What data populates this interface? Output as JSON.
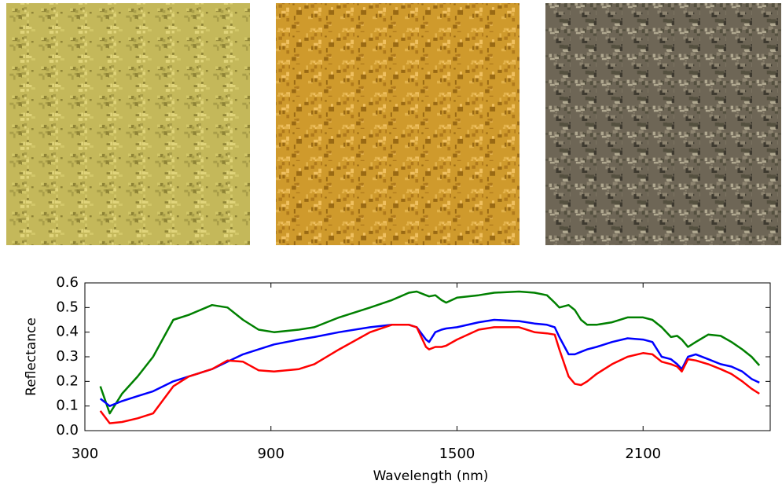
{
  "chart_data": {
    "type": "line",
    "x_label": "Wavelength (nm)",
    "y_label": "Reflectance",
    "x": [
      350,
      380,
      420,
      470,
      520,
      585,
      635,
      710,
      760,
      810,
      860,
      910,
      990,
      1040,
      1120,
      1220,
      1290,
      1345,
      1370,
      1400,
      1410,
      1430,
      1450,
      1465,
      1500,
      1570,
      1620,
      1700,
      1750,
      1790,
      1815,
      1830,
      1860,
      1880,
      1900,
      1920,
      1950,
      2000,
      2050,
      2100,
      2130,
      2160,
      2190,
      2210,
      2225,
      2245,
      2270,
      2310,
      2350,
      2385,
      2420,
      2450,
      2475
    ],
    "series": [
      {
        "color": "#008000",
        "values": [
          0.18,
          0.07,
          0.15,
          0.22,
          0.3,
          0.45,
          0.47,
          0.51,
          0.5,
          0.45,
          0.41,
          0.4,
          0.41,
          0.42,
          0.46,
          0.5,
          0.53,
          0.56,
          0.565,
          0.55,
          0.545,
          0.55,
          0.53,
          0.52,
          0.54,
          0.55,
          0.56,
          0.565,
          0.56,
          0.55,
          0.52,
          0.5,
          0.51,
          0.49,
          0.45,
          0.43,
          0.43,
          0.44,
          0.46,
          0.46,
          0.45,
          0.42,
          0.38,
          0.385,
          0.37,
          0.34,
          0.36,
          0.39,
          0.385,
          0.36,
          0.33,
          0.3,
          0.265
        ]
      },
      {
        "color": "#0000ff",
        "values": [
          0.13,
          0.1,
          0.12,
          0.14,
          0.16,
          0.2,
          0.22,
          0.25,
          0.28,
          0.31,
          0.33,
          0.35,
          0.37,
          0.38,
          0.4,
          0.42,
          0.43,
          0.43,
          0.42,
          0.37,
          0.36,
          0.4,
          0.41,
          0.415,
          0.42,
          0.44,
          0.45,
          0.445,
          0.435,
          0.43,
          0.42,
          0.38,
          0.31,
          0.31,
          0.32,
          0.33,
          0.34,
          0.36,
          0.375,
          0.37,
          0.36,
          0.3,
          0.29,
          0.27,
          0.25,
          0.3,
          0.31,
          0.29,
          0.27,
          0.26,
          0.24,
          0.21,
          0.195
        ]
      },
      {
        "color": "#ff0000",
        "values": [
          0.08,
          0.03,
          0.035,
          0.05,
          0.07,
          0.18,
          0.22,
          0.25,
          0.285,
          0.28,
          0.245,
          0.24,
          0.25,
          0.27,
          0.33,
          0.4,
          0.43,
          0.43,
          0.42,
          0.34,
          0.33,
          0.34,
          0.34,
          0.345,
          0.37,
          0.41,
          0.42,
          0.42,
          0.4,
          0.395,
          0.39,
          0.33,
          0.22,
          0.19,
          0.185,
          0.2,
          0.23,
          0.27,
          0.3,
          0.315,
          0.31,
          0.28,
          0.27,
          0.26,
          0.24,
          0.29,
          0.285,
          0.27,
          0.25,
          0.23,
          0.2,
          0.17,
          0.15
        ]
      }
    ],
    "xlim": [
      300,
      2510
    ],
    "xticks": [
      300,
      900,
      1500,
      2100
    ],
    "ylim": [
      0,
      0.6
    ],
    "yticks": [
      {
        "value": 0,
        "label": "0.0"
      },
      0.1,
      0.2,
      0.3,
      0.4,
      0.5,
      0.6
    ]
  }
}
